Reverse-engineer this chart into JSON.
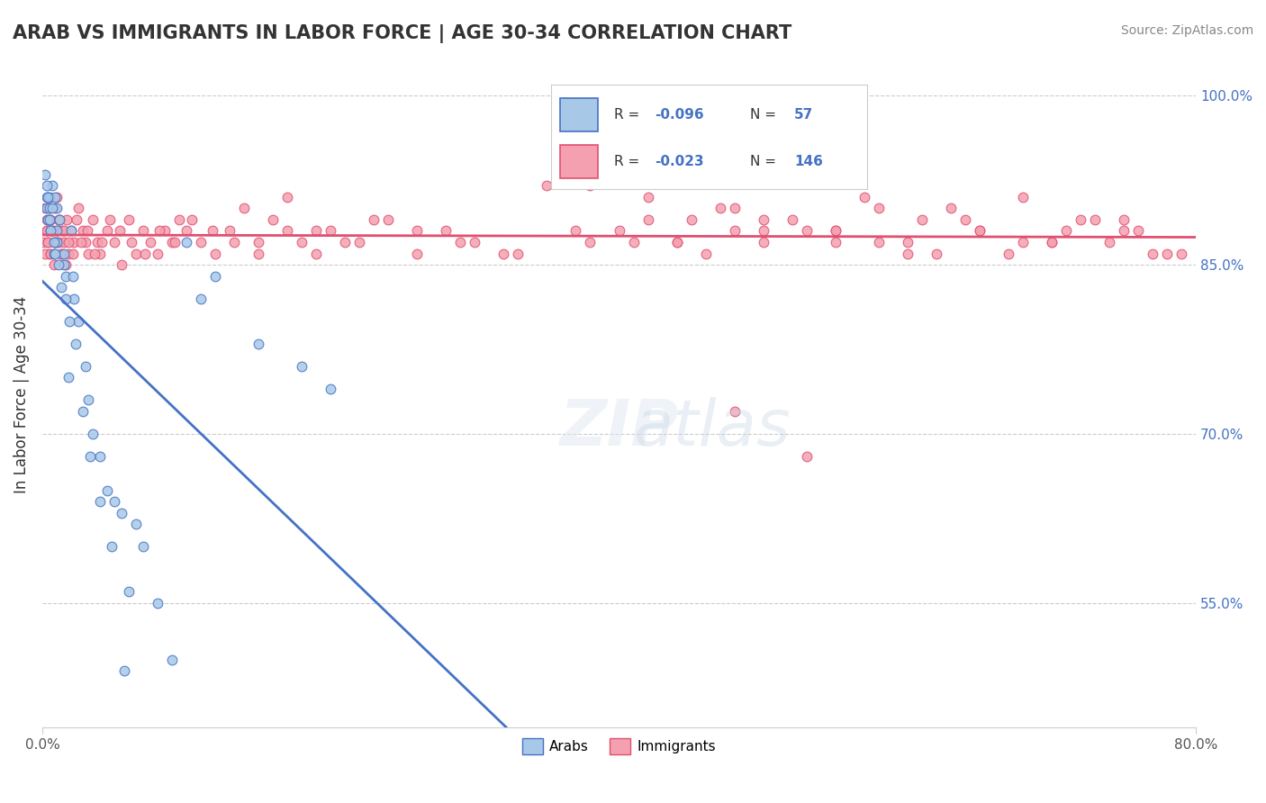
{
  "title": "ARAB VS IMMIGRANTS IN LABOR FORCE | AGE 30-34 CORRELATION CHART",
  "source_text": "Source: ZipAtlas.com",
  "xlabel": "",
  "ylabel": "In Labor Force | Age 30-34",
  "xlim": [
    0.0,
    0.8
  ],
  "ylim": [
    0.44,
    1.03
  ],
  "x_ticks": [
    0.0,
    0.8
  ],
  "x_tick_labels": [
    "0.0%",
    "80.0%"
  ],
  "y_tick_positions": [
    0.55,
    0.7,
    0.85,
    1.0
  ],
  "y_tick_labels": [
    "55.0%",
    "70.0%",
    "85.0%",
    "100.0%"
  ],
  "arab_R": -0.096,
  "arab_N": 57,
  "immigrant_R": -0.023,
  "immigrant_N": 146,
  "legend_arab_label": "Arabs",
  "legend_immigrant_label": "Immigrants",
  "arab_color": "#a8c8e8",
  "immigrant_color": "#f4a0b0",
  "arab_line_color": "#4472c4",
  "immigrant_line_color": "#e05070",
  "watermark_text": "ZIPAtlas",
  "background_color": "#ffffff",
  "arab_scatter_x": [
    0.002,
    0.003,
    0.003,
    0.004,
    0.005,
    0.005,
    0.006,
    0.007,
    0.008,
    0.009,
    0.01,
    0.01,
    0.01,
    0.012,
    0.015,
    0.015,
    0.016,
    0.018,
    0.02,
    0.021,
    0.022,
    0.025,
    0.03,
    0.032,
    0.035,
    0.04,
    0.045,
    0.05,
    0.055,
    0.06,
    0.065,
    0.07,
    0.08,
    0.09,
    0.1,
    0.11,
    0.12,
    0.15,
    0.18,
    0.2,
    0.003,
    0.004,
    0.005,
    0.006,
    0.007,
    0.008,
    0.009,
    0.011,
    0.013,
    0.016,
    0.019,
    0.023,
    0.028,
    0.033,
    0.04,
    0.048,
    0.057
  ],
  "arab_scatter_y": [
    0.93,
    0.91,
    0.9,
    0.89,
    0.91,
    0.9,
    0.88,
    0.92,
    0.86,
    0.91,
    0.9,
    0.88,
    0.87,
    0.89,
    0.86,
    0.85,
    0.84,
    0.75,
    0.88,
    0.84,
    0.82,
    0.8,
    0.76,
    0.73,
    0.7,
    0.68,
    0.65,
    0.64,
    0.63,
    0.56,
    0.62,
    0.6,
    0.55,
    0.5,
    0.87,
    0.82,
    0.84,
    0.78,
    0.76,
    0.74,
    0.92,
    0.91,
    0.89,
    0.88,
    0.9,
    0.87,
    0.86,
    0.85,
    0.83,
    0.82,
    0.8,
    0.78,
    0.72,
    0.68,
    0.64,
    0.6,
    0.49
  ],
  "immigrant_scatter_x": [
    0.001,
    0.002,
    0.003,
    0.003,
    0.004,
    0.004,
    0.005,
    0.005,
    0.006,
    0.007,
    0.008,
    0.009,
    0.01,
    0.01,
    0.011,
    0.012,
    0.013,
    0.014,
    0.015,
    0.016,
    0.017,
    0.018,
    0.02,
    0.022,
    0.025,
    0.028,
    0.03,
    0.032,
    0.035,
    0.038,
    0.04,
    0.045,
    0.05,
    0.055,
    0.06,
    0.065,
    0.07,
    0.075,
    0.08,
    0.085,
    0.09,
    0.095,
    0.1,
    0.11,
    0.12,
    0.13,
    0.14,
    0.15,
    0.16,
    0.17,
    0.18,
    0.19,
    0.2,
    0.22,
    0.24,
    0.26,
    0.28,
    0.3,
    0.32,
    0.35,
    0.38,
    0.4,
    0.42,
    0.44,
    0.46,
    0.48,
    0.5,
    0.52,
    0.55,
    0.58,
    0.6,
    0.62,
    0.65,
    0.68,
    0.7,
    0.73,
    0.75,
    0.77,
    0.53,
    0.48,
    0.002,
    0.003,
    0.004,
    0.005,
    0.006,
    0.007,
    0.008,
    0.009,
    0.011,
    0.013,
    0.015,
    0.018,
    0.021,
    0.024,
    0.027,
    0.031,
    0.036,
    0.041,
    0.047,
    0.054,
    0.062,
    0.071,
    0.081,
    0.092,
    0.104,
    0.118,
    0.133,
    0.15,
    0.17,
    0.19,
    0.21,
    0.23,
    0.26,
    0.29,
    0.33,
    0.37,
    0.41,
    0.45,
    0.5,
    0.55,
    0.6,
    0.65,
    0.7,
    0.75,
    0.38,
    0.42,
    0.47,
    0.52,
    0.57,
    0.63,
    0.68,
    0.72,
    0.76,
    0.79,
    0.64,
    0.58,
    0.71,
    0.67,
    0.61,
    0.74,
    0.78,
    0.55,
    0.48,
    0.44,
    0.5,
    0.53
  ],
  "immigrant_scatter_y": [
    0.87,
    0.9,
    0.89,
    0.88,
    0.91,
    0.87,
    0.9,
    0.86,
    0.89,
    0.88,
    0.87,
    0.9,
    0.91,
    0.88,
    0.87,
    0.89,
    0.86,
    0.88,
    0.87,
    0.85,
    0.89,
    0.86,
    0.88,
    0.87,
    0.9,
    0.88,
    0.87,
    0.86,
    0.89,
    0.87,
    0.86,
    0.88,
    0.87,
    0.85,
    0.89,
    0.86,
    0.88,
    0.87,
    0.86,
    0.88,
    0.87,
    0.89,
    0.88,
    0.87,
    0.86,
    0.88,
    0.9,
    0.87,
    0.89,
    0.88,
    0.87,
    0.86,
    0.88,
    0.87,
    0.89,
    0.86,
    0.88,
    0.87,
    0.86,
    0.92,
    0.87,
    0.88,
    0.89,
    0.87,
    0.86,
    0.88,
    0.87,
    0.89,
    0.88,
    0.9,
    0.87,
    0.86,
    0.88,
    0.91,
    0.87,
    0.89,
    0.88,
    0.86,
    0.68,
    0.72,
    0.86,
    0.88,
    0.87,
    0.89,
    0.86,
    0.88,
    0.85,
    0.87,
    0.89,
    0.86,
    0.88,
    0.87,
    0.86,
    0.89,
    0.87,
    0.88,
    0.86,
    0.87,
    0.89,
    0.88,
    0.87,
    0.86,
    0.88,
    0.87,
    0.89,
    0.88,
    0.87,
    0.86,
    0.91,
    0.88,
    0.87,
    0.89,
    0.88,
    0.87,
    0.86,
    0.88,
    0.87,
    0.89,
    0.88,
    0.87,
    0.86,
    0.88,
    0.87,
    0.89,
    0.92,
    0.91,
    0.9,
    0.93,
    0.91,
    0.9,
    0.87,
    0.89,
    0.88,
    0.86,
    0.89,
    0.87,
    0.88,
    0.86,
    0.89,
    0.87,
    0.86,
    0.88,
    0.9,
    0.87,
    0.89,
    0.88
  ]
}
